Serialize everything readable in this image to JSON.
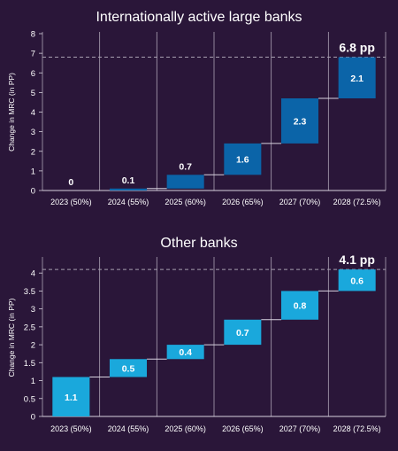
{
  "colors": {
    "background": "#2a1639",
    "text": "#ffffff",
    "grid": "#d8d2df",
    "connector": "#d8d2df",
    "dashed_total": "#a79fb0"
  },
  "chart_data": [
    {
      "type": "waterfall",
      "title": "Internationally active large banks",
      "ylabel": "Change in MRC (in PP)",
      "xlabel": "",
      "categories": [
        "2023 (50%)",
        "2024 (55%)",
        "2025 (60%)",
        "2026 (65%)",
        "2027 (70%)",
        "2028 (72.5%)"
      ],
      "values": [
        0,
        0.1,
        0.7,
        1.6,
        2.3,
        2.1
      ],
      "value_labels": [
        "0",
        "0.1",
        "0.7",
        "1.6",
        "2.3",
        "2.1"
      ],
      "total_label": "6.8 pp",
      "total": 6.8,
      "ylim": [
        0,
        8
      ],
      "yticks": [
        0,
        1,
        2,
        3,
        4,
        5,
        6,
        7,
        8
      ],
      "bar_color": "#0b64a8",
      "grid": "vertical"
    },
    {
      "type": "waterfall",
      "title": "Other banks",
      "ylabel": "Change in MRC (in PP)",
      "xlabel": "",
      "categories": [
        "2023 (50%)",
        "2024 (55%)",
        "2025 (60%)",
        "2026 (65%)",
        "2027 (70%)",
        "2028 (72.5%)"
      ],
      "values": [
        1.1,
        0.5,
        0.4,
        0.7,
        0.8,
        0.6
      ],
      "value_labels": [
        "1.1",
        "0.5",
        "0.4",
        "0.7",
        "0.8",
        "0.6"
      ],
      "total_label": "4.1 pp",
      "total": 4.1,
      "ylim": [
        0,
        4.4
      ],
      "yticks": [
        0,
        0.5,
        1,
        1.5,
        2,
        2.5,
        3,
        3.5,
        4
      ],
      "ytick_labels": [
        "0",
        "0.5",
        "1",
        "1.5",
        "2",
        "2.5",
        "3",
        "3.5",
        "4"
      ],
      "bar_color": "#1aa8dc",
      "grid": "vertical"
    }
  ]
}
